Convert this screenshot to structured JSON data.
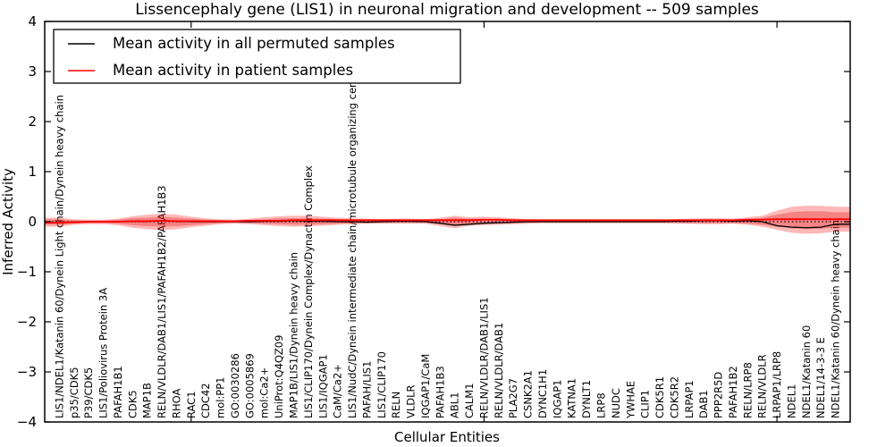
{
  "chart_data": {
    "type": "line",
    "title": "Lissencephaly gene (LIS1) in neuronal migration and development -- 509 samples",
    "xlabel": "Cellular Entities",
    "ylabel": "Inferred Activity",
    "ylim": [
      -4,
      4
    ],
    "grid": false,
    "legend_position": "upper left",
    "y_ticks": [
      {
        "value": 4,
        "label": "4"
      },
      {
        "value": 3,
        "label": "3"
      },
      {
        "value": 2,
        "label": "2"
      },
      {
        "value": 1,
        "label": "1"
      },
      {
        "value": 0,
        "label": "0"
      },
      {
        "value": -1,
        "label": "−1"
      },
      {
        "value": -2,
        "label": "−2"
      },
      {
        "value": -3,
        "label": "−3"
      },
      {
        "value": -4,
        "label": "−4"
      }
    ],
    "x_tick_indices": [
      9,
      29,
      49
    ],
    "zero_line": {
      "style": "dotted",
      "color": "#000000",
      "y": 0
    },
    "categories": [
      "LIS1/NDEL1/Katanin 60/Dynein Light chain/Dynein heavy chain",
      "p35/CDK5",
      "P39/CDK5",
      "LIS1/Poliovirus Protein 3A",
      "PAFAH1B1",
      "CDK5",
      "MAP1B",
      "RELN/VLDLR/DAB1/LIS1/PAFAH1B2/PAFAH1B3",
      "RHOA",
      "RAC1",
      "CDC42",
      "mol:PP1",
      "GO:0030286",
      "GO:0005869",
      "mol:Ca2+",
      "UniProt:Q4QZ09",
      "MAP1B/LIS1/Dynein heavy chain",
      "LIS1/CLIP170/Dynein Complex/Dynactin Complex",
      "LIS1/IQGAP1",
      "CaM/Ca2+",
      "LIS1/NudC/Dynein intermediate chain/microtubule organizing center",
      "PAFAH/LIS1",
      "LIS1/CLIP170",
      "RELN",
      "VLDLR",
      "IQGAP1/CaM",
      "PAFAH1B3",
      "ABL1",
      "CALM1",
      "RELN/VLDLR/DAB1/LIS1",
      "RELN/VLDLR/DAB1",
      "PLA2G7",
      "CSNK2A1",
      "DYNC1H1",
      "IQGAP1",
      "KATNA1",
      "DYNLT1",
      "LRP8",
      "NUDC",
      "YWHAE",
      "CLIP1",
      "CDK5R1",
      "CDK5R2",
      "LRPAP1",
      "DAB1",
      "PPP2R5D",
      "PAFAH1B2",
      "RELN/LRP8",
      "RELN/VLDLR",
      "LRPAP1/LRP8",
      "NDEL1",
      "NDEL1/Katanin 60",
      "NDEL1/14-3-3 E",
      "NDEL1/Katanin 60/Dynein heavy chain"
    ],
    "series": [
      {
        "id": "permuted-mean-line",
        "name": "Mean activity in all permuted samples",
        "color": "#000000",
        "width": 1.3,
        "values": [
          -0.02,
          -0.01,
          0,
          0,
          0,
          0.01,
          0.01,
          0.02,
          0.01,
          0,
          0,
          0,
          0,
          0,
          0.01,
          0.01,
          0.02,
          0.01,
          0.01,
          0,
          0,
          -0.01,
          0,
          0.01,
          0.01,
          0,
          -0.03,
          -0.07,
          -0.05,
          -0.03,
          -0.02,
          -0.01,
          0,
          0,
          0,
          0,
          0,
          0,
          0,
          0,
          0,
          0,
          0.01,
          0.01,
          0.02,
          0.02,
          0.01,
          0.02,
          0,
          -0.08,
          -0.11,
          -0.12,
          -0.11,
          -0.05
        ]
      },
      {
        "id": "patient-mean-line",
        "name": "Mean activity in patient samples",
        "color": "#ff0000",
        "width": 1.8,
        "values": [
          -0.02,
          -0.01,
          0,
          0,
          0,
          0.01,
          0.01,
          0.02,
          0.01,
          0.01,
          0.01,
          0.01,
          0.01,
          0.02,
          0.02,
          0.02,
          0.03,
          0.03,
          0.03,
          0.03,
          0.03,
          0.03,
          0.03,
          0.03,
          0.03,
          0.03,
          0.03,
          0.03,
          0.03,
          0.04,
          0.04,
          0.03,
          0.03,
          0.03,
          0.03,
          0.03,
          0.03,
          0.03,
          0.03,
          0.03,
          0.03,
          0.03,
          0.03,
          0.03,
          0.03,
          0.03,
          0.03,
          0.04,
          0.04,
          0.05,
          0.05,
          0.05,
          0.05,
          0.05
        ]
      }
    ],
    "bands": [
      {
        "name": "patient-spread-band-outer",
        "color": "#ff0000",
        "opacity": 0.28,
        "upper": [
          0.08,
          0.05,
          0.04,
          0.04,
          0.06,
          0.11,
          0.14,
          0.16,
          0.14,
          0.1,
          0.07,
          0.05,
          0.04,
          0.06,
          0.09,
          0.11,
          0.12,
          0.12,
          0.1,
          0.08,
          0.07,
          0.06,
          0.05,
          0.06,
          0.06,
          0.05,
          0.08,
          0.12,
          0.09,
          0.1,
          0.09,
          0.07,
          0.05,
          0.04,
          0.03,
          0.03,
          0.03,
          0.03,
          0.03,
          0.03,
          0.03,
          0.04,
          0.05,
          0.06,
          0.07,
          0.07,
          0.06,
          0.09,
          0.12,
          0.22,
          0.3,
          0.32,
          0.32,
          0.3
        ],
        "lower": [
          -0.1,
          -0.06,
          -0.05,
          -0.05,
          -0.07,
          -0.12,
          -0.15,
          -0.17,
          -0.15,
          -0.11,
          -0.08,
          -0.05,
          -0.04,
          -0.05,
          -0.07,
          -0.09,
          -0.1,
          -0.09,
          -0.08,
          -0.06,
          -0.05,
          -0.04,
          -0.04,
          -0.04,
          -0.04,
          -0.04,
          -0.09,
          -0.13,
          -0.08,
          -0.07,
          -0.06,
          -0.05,
          -0.04,
          -0.03,
          -0.03,
          -0.03,
          -0.03,
          -0.03,
          -0.03,
          -0.03,
          -0.03,
          -0.03,
          -0.04,
          -0.04,
          -0.05,
          -0.05,
          -0.04,
          -0.06,
          -0.1,
          -0.16,
          -0.22,
          -0.24,
          -0.23,
          -0.2
        ]
      },
      {
        "name": "patient-spread-band-inner",
        "color": "#e02020",
        "opacity": 0.35,
        "upper": [
          0.05,
          0.03,
          0.02,
          0.02,
          0.04,
          0.07,
          0.08,
          0.1,
          0.08,
          0.06,
          0.04,
          0.03,
          0.02,
          0.04,
          0.05,
          0.07,
          0.07,
          0.07,
          0.06,
          0.05,
          0.04,
          0.04,
          0.03,
          0.04,
          0.04,
          0.03,
          0.05,
          0.08,
          0.06,
          0.06,
          0.05,
          0.04,
          0.03,
          0.02,
          0.02,
          0.02,
          0.02,
          0.02,
          0.02,
          0.02,
          0.02,
          0.02,
          0.03,
          0.04,
          0.04,
          0.04,
          0.04,
          0.06,
          0.08,
          0.14,
          0.19,
          0.21,
          0.21,
          0.19
        ],
        "lower": [
          -0.06,
          -0.04,
          -0.03,
          -0.03,
          -0.04,
          -0.07,
          -0.09,
          -0.1,
          -0.09,
          -0.07,
          -0.05,
          -0.03,
          -0.02,
          -0.03,
          -0.04,
          -0.05,
          -0.06,
          -0.06,
          -0.05,
          -0.04,
          -0.03,
          -0.02,
          -0.02,
          -0.02,
          -0.02,
          -0.02,
          -0.05,
          -0.08,
          -0.05,
          -0.04,
          -0.04,
          -0.03,
          -0.02,
          -0.02,
          -0.02,
          -0.02,
          -0.02,
          -0.02,
          -0.02,
          -0.02,
          -0.02,
          -0.02,
          -0.02,
          -0.03,
          -0.03,
          -0.03,
          -0.03,
          -0.04,
          -0.06,
          -0.1,
          -0.13,
          -0.15,
          -0.14,
          -0.12
        ]
      }
    ]
  }
}
